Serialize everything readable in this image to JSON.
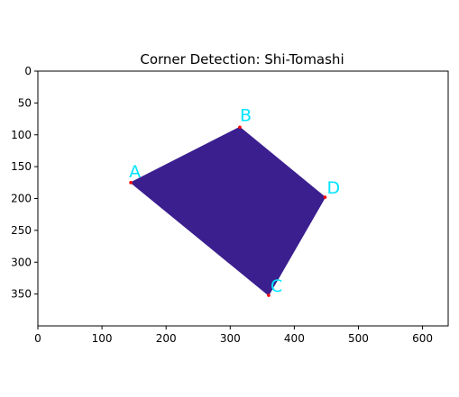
{
  "chart_data": {
    "type": "image",
    "title": "Corner Detection: Shi-Tomashi",
    "xlabel": "",
    "ylabel": "",
    "xlim": [
      0,
      640
    ],
    "ylim": [
      400,
      0
    ],
    "y_axis_inverted": true,
    "grid": false,
    "x_ticks": [
      0,
      100,
      200,
      300,
      400,
      500,
      600
    ],
    "y_ticks": [
      0,
      50,
      100,
      150,
      200,
      250,
      300,
      350
    ],
    "background_color": "#ffffff",
    "polygon": {
      "fill_color": "#3b1f8f",
      "vertices": [
        {
          "x": 145,
          "y": 175
        },
        {
          "x": 315,
          "y": 88
        },
        {
          "x": 448,
          "y": 198
        },
        {
          "x": 360,
          "y": 352
        }
      ]
    },
    "corners": [
      {
        "label": "A",
        "x": 145,
        "y": 175
      },
      {
        "label": "B",
        "x": 315,
        "y": 88
      },
      {
        "label": "C",
        "x": 360,
        "y": 352
      },
      {
        "label": "D",
        "x": 448,
        "y": 198
      }
    ],
    "corner_marker_color": "#ff0000",
    "corner_label_color": "#00e5ff"
  }
}
